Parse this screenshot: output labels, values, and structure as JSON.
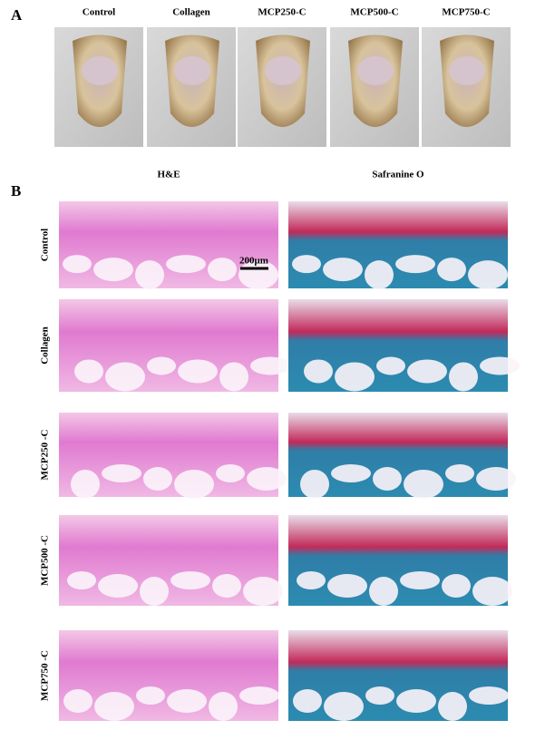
{
  "panel_a": {
    "label": "A",
    "columns": [
      "Control",
      "Collagen",
      "MCP250-C",
      "MCP500-C",
      "MCP750-C"
    ]
  },
  "panel_b": {
    "label": "B",
    "headers": [
      "H&E",
      "Safranine O"
    ],
    "rows": [
      "Control",
      "Collagen",
      "MCP250 -C",
      "MCP500 -C",
      "MCP750 -C"
    ],
    "scale_bar": "200μm"
  }
}
